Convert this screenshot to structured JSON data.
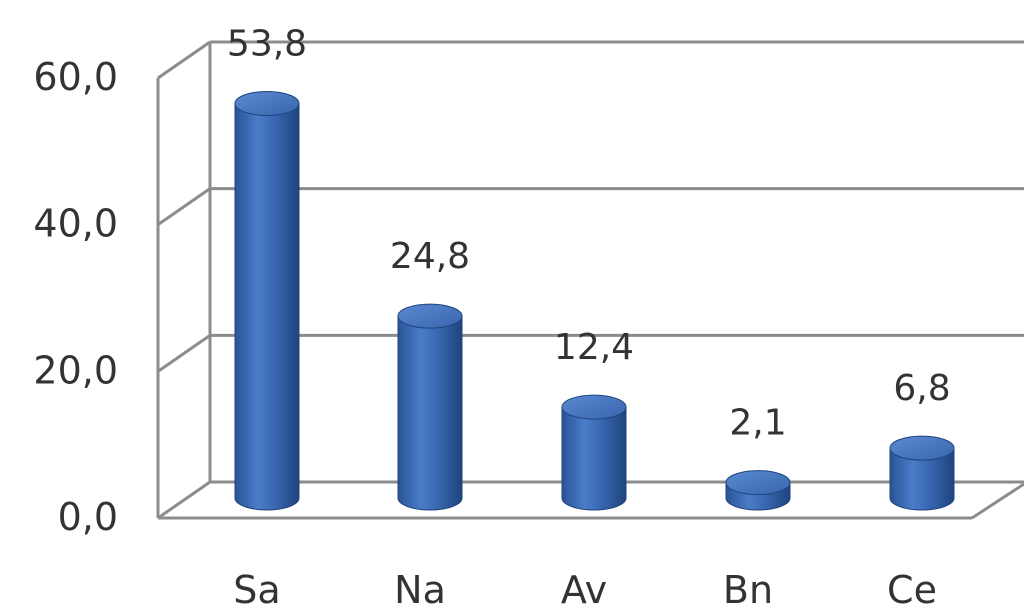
{
  "chart_data": {
    "type": "bar",
    "categories": [
      "Sa",
      "Na",
      "Av",
      "Bn",
      "Ce"
    ],
    "values": [
      53.8,
      24.8,
      12.4,
      2.1,
      6.8
    ],
    "value_labels": [
      "53,8",
      "24,8",
      "12,4",
      "2,1",
      "6,8"
    ],
    "ylim": [
      0,
      60
    ],
    "y_ticks": [
      0,
      20,
      40,
      60
    ],
    "y_tick_labels": [
      "0,0",
      "20,0",
      "40,0",
      "60,0"
    ],
    "title": "",
    "xlabel": "",
    "ylabel": "",
    "grid": true,
    "style": "3d-cylinder",
    "bar_color": "#3d6cb5"
  }
}
